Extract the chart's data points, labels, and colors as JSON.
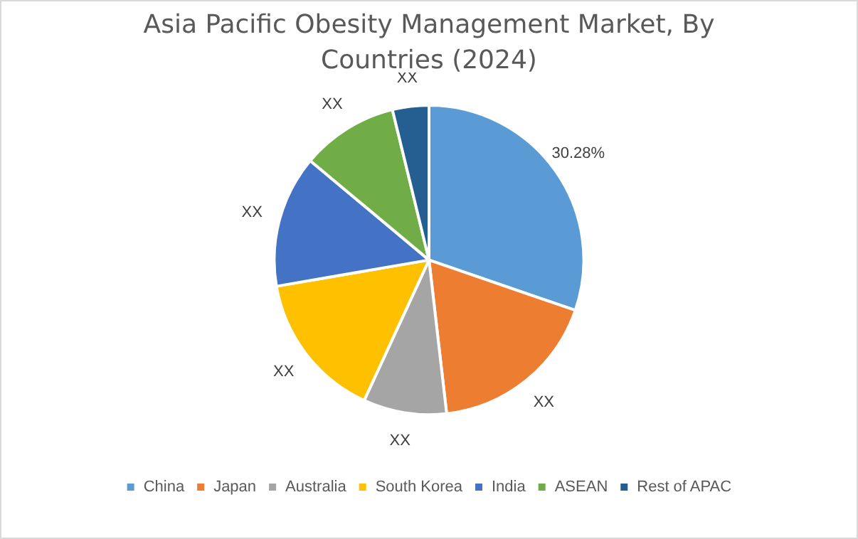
{
  "chart_data": {
    "type": "pie",
    "title": "Asia Pacific Obesity Management Market, By Countries (2024)",
    "categories": [
      "China",
      "Japan",
      "Australia",
      "South Korea",
      "India",
      "ASEAN",
      "Rest of APAC"
    ],
    "values": [
      30.28,
      17.9,
      8.7,
      15.4,
      13.8,
      10.12,
      3.8
    ],
    "colors": [
      "#5b9bd5",
      "#ed7d31",
      "#a5a5a5",
      "#ffc000",
      "#4472c4",
      "#70ad47",
      "#255e91"
    ],
    "value_labels": [
      "30.28%",
      "XX",
      "XX",
      "XX",
      "XX",
      "XX",
      "XX"
    ],
    "legend": "bottom"
  }
}
